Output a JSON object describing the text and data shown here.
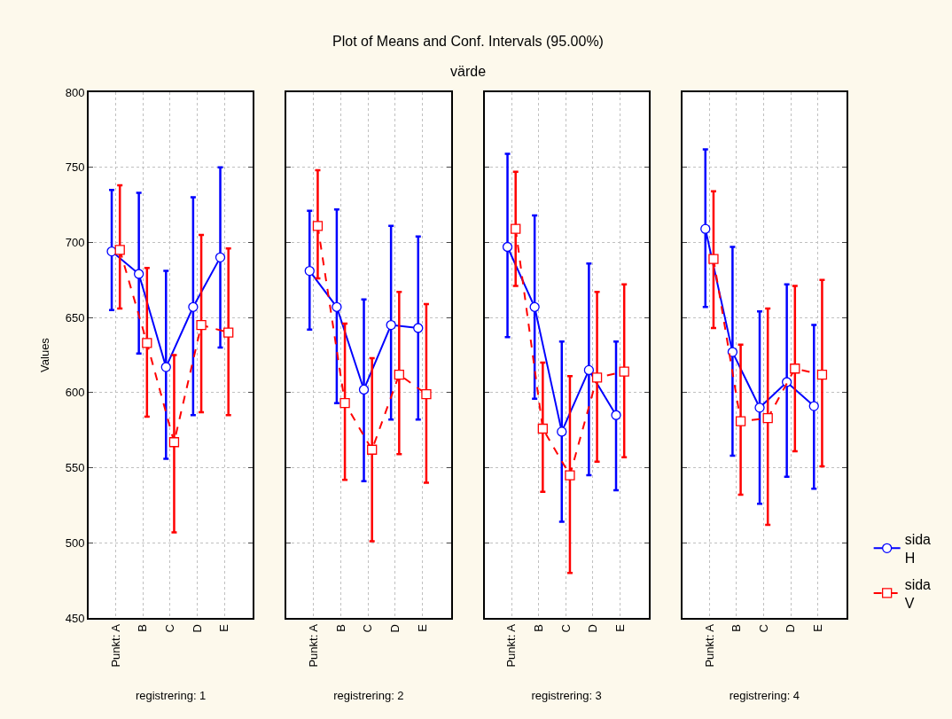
{
  "chart_data": [
    {
      "type": "line",
      "xlabel": "registrering: 1",
      "ylabel": "Values",
      "categories": [
        "Punkt: A",
        "B",
        "C",
        "D",
        "E"
      ],
      "ylim": [
        450,
        800
      ],
      "yticks": [
        450,
        500,
        550,
        600,
        650,
        700,
        750,
        800
      ],
      "grid": true,
      "series": [
        {
          "color": "#0000ff",
          "marker": "circle",
          "line_style": "solid",
          "values": [
            694,
            679,
            617,
            657,
            690
          ],
          "errors": [
            [
              655,
              735
            ],
            [
              626,
              733
            ],
            [
              556,
              681
            ],
            [
              585,
              730
            ],
            [
              630,
              750
            ]
          ]
        },
        {
          "color": "#ff0000",
          "marker": "square",
          "line_style": "dashed",
          "values": [
            695,
            633,
            567,
            645,
            640
          ],
          "errors": [
            [
              656,
              738
            ],
            [
              584,
              683
            ],
            [
              507,
              625
            ],
            [
              587,
              705
            ],
            [
              585,
              696
            ]
          ]
        }
      ]
    },
    {
      "type": "line",
      "title": "Plot of Means and Conf. Intervals (95.00%)",
      "subtitle": "värde",
      "xlabel": "registrering: 2",
      "categories": [
        "Punkt: A",
        "B",
        "C",
        "D",
        "E"
      ],
      "ylim": [
        450,
        800
      ],
      "yticks": [
        450,
        500,
        550,
        600,
        650,
        700,
        750,
        800
      ],
      "grid": true,
      "tick_labels": "x",
      "series": [
        {
          "color": "#0000ff",
          "marker": "circle",
          "line_style": "solid",
          "values": [
            681,
            657,
            602,
            645,
            643
          ],
          "errors": [
            [
              642,
              721
            ],
            [
              593,
              722
            ],
            [
              541,
              662
            ],
            [
              582,
              711
            ],
            [
              582,
              704
            ]
          ]
        },
        {
          "color": "#ff0000",
          "marker": "square",
          "line_style": "dashed",
          "values": [
            711,
            593,
            562,
            612,
            599
          ],
          "errors": [
            [
              676,
              748
            ],
            [
              542,
              646
            ],
            [
              501,
              623
            ],
            [
              559,
              667
            ],
            [
              540,
              659
            ]
          ]
        }
      ]
    },
    {
      "type": "line",
      "xlabel": "registrering: 3",
      "categories": [
        "Punkt: A",
        "B",
        "C",
        "D",
        "E"
      ],
      "ylim": [
        450,
        800
      ],
      "yticks": [
        450,
        500,
        550,
        600,
        650,
        700,
        750,
        800
      ],
      "grid": true,
      "tick_labels": "x",
      "series": [
        {
          "color": "#0000ff",
          "marker": "circle",
          "line_style": "solid",
          "values": [
            697,
            657,
            574,
            615,
            585
          ],
          "errors": [
            [
              637,
              759
            ],
            [
              596,
              718
            ],
            [
              514,
              634
            ],
            [
              545,
              686
            ],
            [
              535,
              634
            ]
          ]
        },
        {
          "color": "#ff0000",
          "marker": "square",
          "line_style": "dashed",
          "values": [
            709,
            576,
            545,
            610,
            614
          ],
          "errors": [
            [
              671,
              747
            ],
            [
              534,
              620
            ],
            [
              480,
              611
            ],
            [
              554,
              667
            ],
            [
              557,
              672
            ]
          ]
        }
      ]
    },
    {
      "type": "line",
      "xlabel": "registrering: 4",
      "categories": [
        "Punkt: A",
        "B",
        "C",
        "D",
        "E"
      ],
      "ylim": [
        450,
        800
      ],
      "yticks": [
        450,
        500,
        550,
        600,
        650,
        700,
        750,
        800
      ],
      "grid": true,
      "tick_labels": "x",
      "legend": "bottom right",
      "series": [
        {
          "name": "sida H",
          "color": "#0000ff",
          "marker": "circle",
          "line_style": "solid",
          "values": [
            709,
            627,
            590,
            607,
            591
          ],
          "errors": [
            [
              657,
              762
            ],
            [
              558,
              697
            ],
            [
              526,
              654
            ],
            [
              544,
              672
            ],
            [
              536,
              645
            ]
          ]
        },
        {
          "name": "sida V",
          "color": "#ff0000",
          "marker": "square",
          "line_style": "dashed",
          "values": [
            689,
            581,
            583,
            616,
            612
          ],
          "errors": [
            [
              643,
              734
            ],
            [
              532,
              632
            ],
            [
              512,
              656
            ],
            [
              561,
              671
            ],
            [
              551,
              675
            ]
          ]
        }
      ]
    }
  ]
}
